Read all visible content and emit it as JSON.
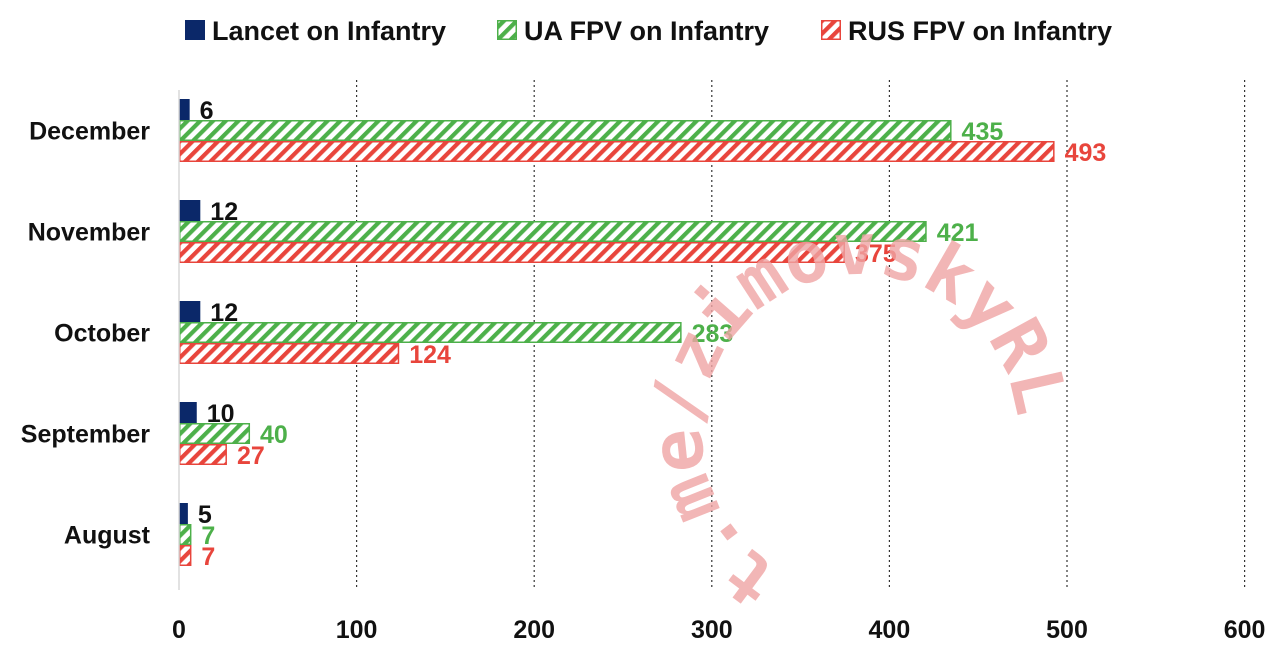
{
  "chart_data": {
    "type": "bar",
    "orientation": "horizontal",
    "categories": [
      "December",
      "November",
      "October",
      "September",
      "August"
    ],
    "series": [
      {
        "name": "Lancet on Infantry",
        "values": [
          6,
          12,
          12,
          10,
          5
        ],
        "color": "#0b2869",
        "fill": "solid",
        "label_color": "#111111"
      },
      {
        "name": "UA FPV on Infantry",
        "values": [
          435,
          421,
          283,
          40,
          7
        ],
        "color": "#4db04a",
        "fill": "diagonal-hatch",
        "label_color": "#4db04a"
      },
      {
        "name": "RUS FPV on Infantry",
        "values": [
          493,
          375,
          124,
          27,
          7
        ],
        "color": "#e8453c",
        "fill": "diagonal-hatch",
        "label_color": "#e8453c"
      }
    ],
    "xlim": [
      0,
      600
    ],
    "xticks": [
      "0",
      "100",
      "200",
      "300",
      "400",
      "500",
      "600"
    ],
    "grid": "vertical dotted",
    "legend": "top",
    "watermark": "t.me/zimovskyRL",
    "watermark_color": "#f0a4a4"
  }
}
